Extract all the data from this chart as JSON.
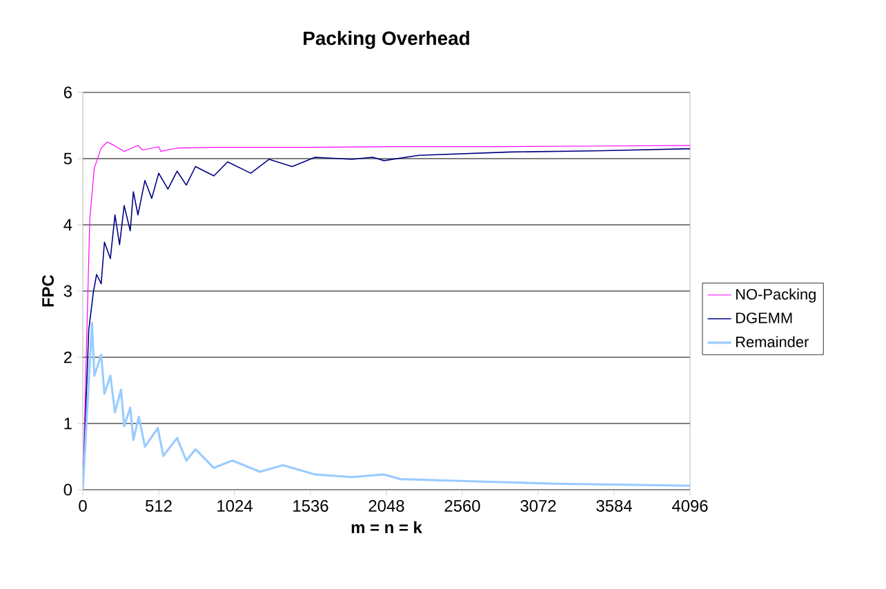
{
  "chart_data": {
    "type": "line",
    "title": "Packing Overhead",
    "xlabel": "m = n = k",
    "ylabel": "FPC",
    "xlim": [
      0,
      4096
    ],
    "xticks": [
      0,
      512,
      1024,
      1536,
      2048,
      2560,
      3072,
      3584,
      4096
    ],
    "ylim": [
      0,
      6
    ],
    "yticks": [
      0,
      1,
      2,
      3,
      4,
      5,
      6
    ],
    "grid": "y",
    "legend": "right",
    "marker": "none",
    "line_style": "solid",
    "series": [
      {
        "name": "NO-Packing",
        "color": "#ff00ff",
        "x": [
          0,
          47,
          77,
          124,
          164,
          202,
          279,
          372,
          403,
          512,
          527,
          636,
          900,
          1500,
          2100,
          2800,
          3500,
          4096
        ],
        "values": [
          0,
          4.08,
          4.85,
          5.16,
          5.25,
          5.21,
          5.11,
          5.2,
          5.13,
          5.18,
          5.11,
          5.16,
          5.17,
          5.17,
          5.18,
          5.18,
          5.19,
          5.2
        ]
      },
      {
        "name": "DGEMM",
        "color": "#000080",
        "x": [
          0,
          40,
          71,
          93,
          124,
          146,
          186,
          217,
          248,
          279,
          320,
          341,
          372,
          419,
          465,
          512,
          574,
          636,
          698,
          760,
          884,
          977,
          1133,
          1257,
          1412,
          1567,
          1815,
          1955,
          2032,
          2265,
          2886,
          3507,
          4096
        ],
        "values": [
          0,
          2.41,
          2.98,
          3.25,
          3.11,
          3.74,
          3.49,
          4.15,
          3.7,
          4.29,
          3.91,
          4.5,
          4.15,
          4.67,
          4.4,
          4.78,
          4.54,
          4.81,
          4.6,
          4.88,
          4.74,
          4.95,
          4.78,
          4.99,
          4.88,
          5.02,
          4.99,
          5.02,
          4.97,
          5.05,
          5.1,
          5.12,
          5.15
        ]
      },
      {
        "name": "Remainder",
        "color": "#99ccff",
        "x": [
          0,
          62,
          78,
          124,
          146,
          186,
          217,
          258,
          279,
          320,
          341,
          378,
          419,
          506,
          543,
          636,
          698,
          760,
          884,
          1009,
          1195,
          1350,
          1567,
          1815,
          2032,
          2141,
          2575,
          3196,
          4096
        ],
        "values": [
          0,
          2.52,
          1.72,
          2.04,
          1.45,
          1.72,
          1.17,
          1.51,
          0.96,
          1.24,
          0.75,
          1.1,
          0.65,
          0.93,
          0.51,
          0.78,
          0.44,
          0.61,
          0.33,
          0.44,
          0.27,
          0.37,
          0.23,
          0.19,
          0.23,
          0.16,
          0.13,
          0.09,
          0.06
        ]
      }
    ]
  }
}
